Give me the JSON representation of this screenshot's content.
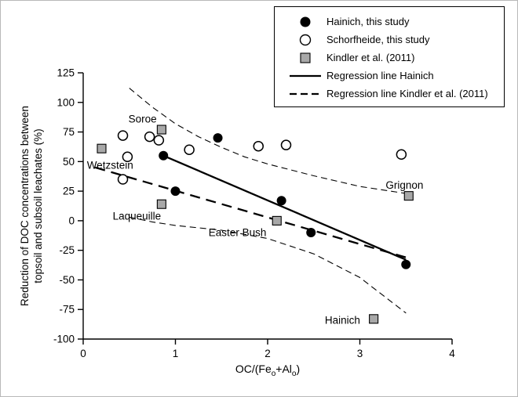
{
  "figure": {
    "background": "#ffffff"
  },
  "colors": {
    "black": "#000000",
    "white": "#ffffff",
    "marker_gray": "#a8a8a8"
  },
  "legend": {
    "items": [
      {
        "label": "Hainich, this study",
        "marker": "filled-circle"
      },
      {
        "label": "Schorfheide, this study",
        "marker": "open-circle"
      },
      {
        "label": "Kindler et al. (2011)",
        "marker": "gray-square"
      },
      {
        "label": "Regression line Hainich",
        "marker": "solid-line"
      },
      {
        "label": "Regression line Kindler et al. (2011)",
        "marker": "dashed-line"
      }
    ]
  },
  "chart_data": {
    "type": "scatter",
    "title": "",
    "xlabel": "OC/(Fe_o+Al_o)",
    "ylabel": "Reduction of DOC concentrations between topsoil and subsoil leachates (%)",
    "ylabel_lines": [
      "Reduction of DOC concentrations between",
      "topsoil and subsoil leachates (%)"
    ],
    "xlim": [
      0,
      4
    ],
    "ylim": [
      -100,
      125
    ],
    "x_ticks": [
      0,
      1,
      2,
      3,
      4
    ],
    "y_ticks": [
      -100,
      -75,
      -50,
      -25,
      0,
      25,
      50,
      75,
      100,
      125
    ],
    "grid": false,
    "legend_position": "top-right",
    "series": [
      {
        "name": "Hainich, this study",
        "marker": "filled-circle",
        "points": [
          [
            0.87,
            55
          ],
          [
            1.0,
            25
          ],
          [
            1.46,
            70
          ],
          [
            2.15,
            17
          ],
          [
            2.47,
            -10
          ],
          [
            3.5,
            -37
          ]
        ]
      },
      {
        "name": "Schorfheide, this study",
        "marker": "open-circle",
        "points": [
          [
            0.43,
            72
          ],
          [
            0.48,
            54
          ],
          [
            0.43,
            35
          ],
          [
            0.72,
            71
          ],
          [
            0.82,
            68
          ],
          [
            1.15,
            60
          ],
          [
            1.9,
            63
          ],
          [
            2.2,
            64
          ],
          [
            3.45,
            56
          ]
        ]
      },
      {
        "name": "Kindler et al. (2011)",
        "marker": "gray-square",
        "points": [
          [
            0.2,
            61
          ],
          [
            0.85,
            77
          ],
          [
            0.85,
            14
          ],
          [
            2.1,
            0
          ],
          [
            3.53,
            21
          ],
          [
            3.15,
            -83
          ]
        ],
        "sites": [
          "Wetzstein",
          "Soroe",
          "Laqueuille",
          "Easter Bush",
          "Grignon",
          "Hainich"
        ]
      }
    ],
    "regression_lines": [
      {
        "name": "Regression line Hainich",
        "style": "solid",
        "from": [
          0.87,
          55
        ],
        "to": [
          3.5,
          -33
        ]
      },
      {
        "name": "Regression line Kindler et al. (2011)",
        "style": "dashed",
        "from": [
          0.13,
          45
        ],
        "to": [
          3.5,
          -31
        ]
      }
    ],
    "confidence_band": {
      "style": "thin-dashed",
      "upper": [
        [
          0.5,
          112
        ],
        [
          0.75,
          96
        ],
        [
          1.0,
          82
        ],
        [
          1.25,
          71
        ],
        [
          1.5,
          62
        ],
        [
          1.75,
          54
        ],
        [
          2.0,
          48
        ],
        [
          2.5,
          38
        ],
        [
          3.0,
          29
        ],
        [
          3.5,
          23
        ]
      ],
      "lower": [
        [
          0.5,
          3
        ],
        [
          0.75,
          -1
        ],
        [
          1.0,
          -4
        ],
        [
          1.5,
          -8
        ],
        [
          2.0,
          -15
        ],
        [
          2.5,
          -28
        ],
        [
          3.0,
          -48
        ],
        [
          3.5,
          -78
        ]
      ]
    },
    "site_labels": [
      {
        "text": "Soroe",
        "x": 0.49,
        "y": 83
      },
      {
        "text": "Wetzstein",
        "x": 0.04,
        "y": 44
      },
      {
        "text": "Laqueuille",
        "x": 0.32,
        "y": 1
      },
      {
        "text": "Easter Bush",
        "x": 1.36,
        "y": -13
      },
      {
        "text": "Grignon",
        "x": 3.28,
        "y": 27
      },
      {
        "text": "Hainich",
        "x": 2.62,
        "y": -87
      }
    ]
  }
}
